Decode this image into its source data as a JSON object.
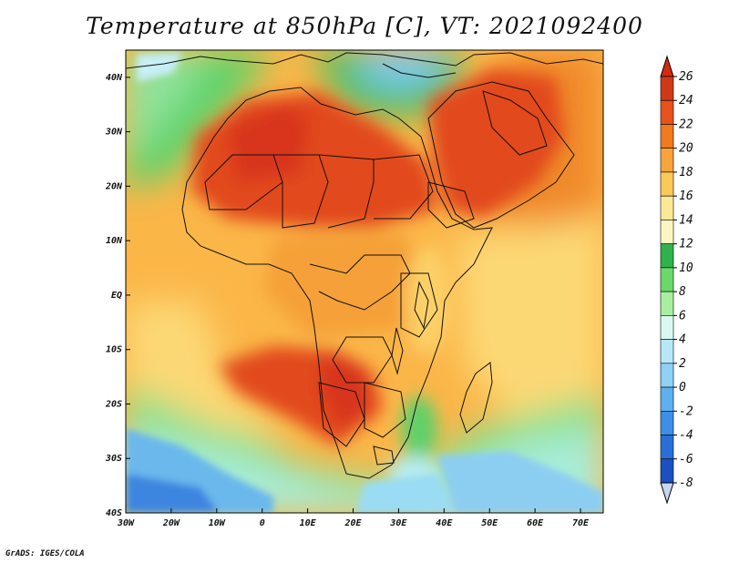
{
  "title": "Temperature at 850hPa [C], VT: 2021092400",
  "credit": "GrADS: IGES/COLA",
  "map": {
    "lon_range": [
      -30,
      75
    ],
    "lat_range": [
      -40,
      45
    ],
    "x_ticks": [
      "30W",
      "20W",
      "10W",
      "0",
      "10E",
      "20E",
      "30E",
      "40E",
      "50E",
      "60E",
      "70E"
    ],
    "y_ticks": [
      "40N",
      "30N",
      "20N",
      "10N",
      "EQ",
      "10S",
      "20S",
      "30S",
      "40S"
    ],
    "grid": false
  },
  "colorbar": {
    "labels": [
      "26",
      "24",
      "22",
      "20",
      "18",
      "16",
      "14",
      "12",
      "10",
      "8",
      "6",
      "4",
      "2",
      "0",
      "-2",
      "-4",
      "-6",
      "-8"
    ],
    "colors": [
      "#d0381a",
      "#e8521c",
      "#f07a1e",
      "#f7a43a",
      "#fbc85a",
      "#fde896",
      "#fdf6c0",
      "#2fb34a",
      "#6cd86a",
      "#a8eea0",
      "#d8f8f0",
      "#b8e8f8",
      "#8ed0f6",
      "#5fb0ee",
      "#3d8fe6",
      "#2a6fd8",
      "#1a50c0",
      "#0a2f8f",
      "#0a1a6a"
    ],
    "top_color": "#d42a10",
    "bottom_color": "#c8d6f2"
  }
}
